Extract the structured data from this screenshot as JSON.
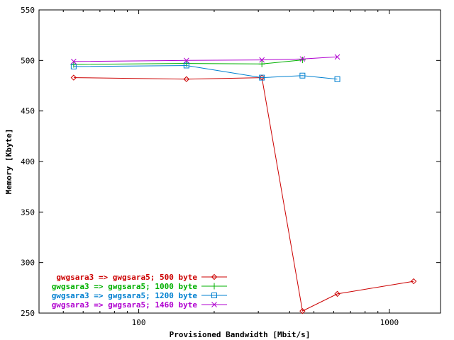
{
  "chart_data": {
    "type": "line",
    "title": "",
    "xlabel": "Provisioned Bandwidth [Mbit/s]",
    "ylabel": "Memory [Kbyte]",
    "xscale": "log",
    "xlim": [
      40,
      1600
    ],
    "ylim": [
      250,
      550
    ],
    "xticks": [
      100,
      1000
    ],
    "xtick_labels": [
      "100",
      "1000"
    ],
    "yticks": [
      250,
      300,
      350,
      400,
      450,
      500,
      550
    ],
    "ytick_labels": [
      "250",
      "300",
      "350",
      "400",
      "450",
      "500",
      "550"
    ],
    "grid": false,
    "legend_position": "bottom-left",
    "series": [
      {
        "name": "gwgsara3 => gwgsara5;  500 byte",
        "color": "#cc0000",
        "marker": "diamond",
        "x": [
          55,
          155,
          310,
          450,
          620,
          1250
        ],
        "y": [
          483,
          481.5,
          483,
          252,
          269,
          281.5
        ]
      },
      {
        "name": "gwgsara3 => gwgsara5; 1000 byte",
        "color": "#00b000",
        "marker": "plus",
        "x": [
          55,
          155,
          310,
          450
        ],
        "y": [
          496,
          497,
          496.5,
          500.5
        ]
      },
      {
        "name": "gwgsara3 => gwgsara5; 1200 byte",
        "color": "#0080d0",
        "marker": "square",
        "x": [
          55,
          155,
          310,
          450,
          620
        ],
        "y": [
          494,
          495,
          483,
          485,
          481.5
        ]
      },
      {
        "name": "gwgsara3 => gwgsara5; 1460 byte",
        "color": "#b000d0",
        "marker": "cross",
        "x": [
          55,
          155,
          310,
          450,
          620
        ],
        "y": [
          499,
          500,
          500.5,
          501.5,
          503.5
        ]
      }
    ]
  }
}
